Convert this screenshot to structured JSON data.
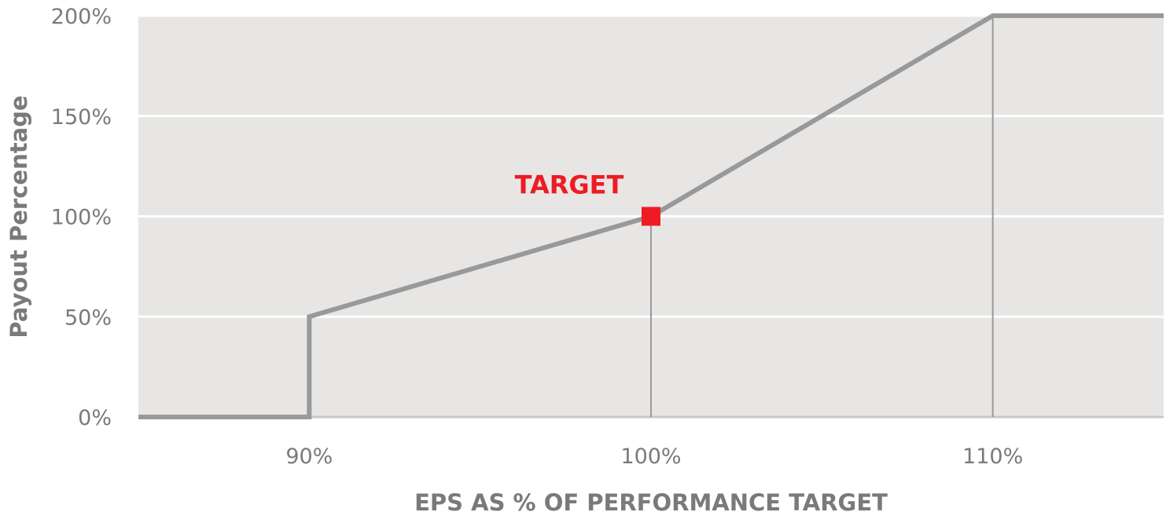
{
  "chart_data": {
    "type": "line",
    "title": "",
    "xlabel": "EPS AS % OF PERFORMANCE TARGET",
    "ylabel": "Payout Percentage",
    "xlim": [
      85,
      115
    ],
    "ylim": [
      0,
      200
    ],
    "x_ticks": [
      90,
      100,
      110
    ],
    "x_tick_labels": [
      "90%",
      "100%",
      "110%"
    ],
    "y_ticks": [
      0,
      50,
      100,
      150,
      200
    ],
    "y_tick_labels": [
      "0%",
      "50%",
      "100%",
      "150%",
      "200%"
    ],
    "grid": "horizontal",
    "series": [
      {
        "x": [
          85,
          90,
          90,
          100,
          110,
          115
        ],
        "y": [
          0,
          0,
          50,
          100,
          200,
          200
        ],
        "color": "#999999"
      }
    ],
    "reference_lines_x": [
      100,
      110
    ],
    "marker": {
      "x": 100,
      "y": 100,
      "label": "TARGET",
      "color": "#ed1c24"
    },
    "background_color": "#e7e6e5"
  }
}
